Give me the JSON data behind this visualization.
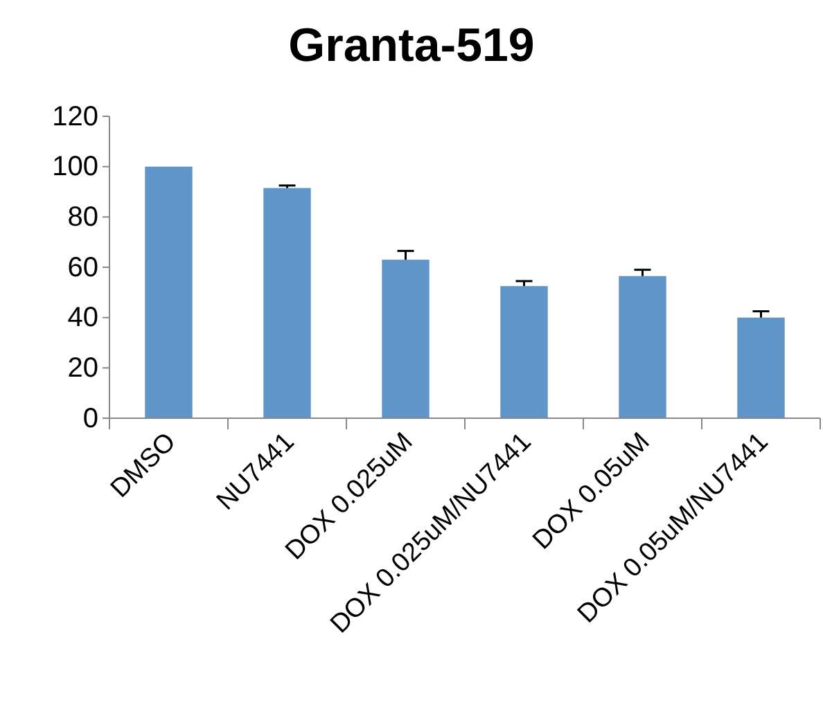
{
  "chart_data": {
    "type": "bar",
    "title": "Granta-519",
    "categories": [
      "DMSO",
      "NU7441",
      "DOX 0.025uM",
      "DOX 0.025uM/NU7441",
      "DOX 0.05uM",
      "DOX 0.05uM/NU7441"
    ],
    "values": [
      100,
      91.5,
      63,
      52.5,
      56.5,
      40
    ],
    "errors": [
      null,
      [
        91.5,
        92.5
      ],
      [
        63,
        66.5
      ],
      [
        52.5,
        54.5
      ],
      [
        56.5,
        59
      ],
      [
        40,
        42.5
      ]
    ],
    "color": "#5f95c9",
    "ylim": [
      0,
      120
    ],
    "yticks": [
      0,
      20,
      40,
      60,
      80,
      100,
      120
    ],
    "grid": false
  }
}
